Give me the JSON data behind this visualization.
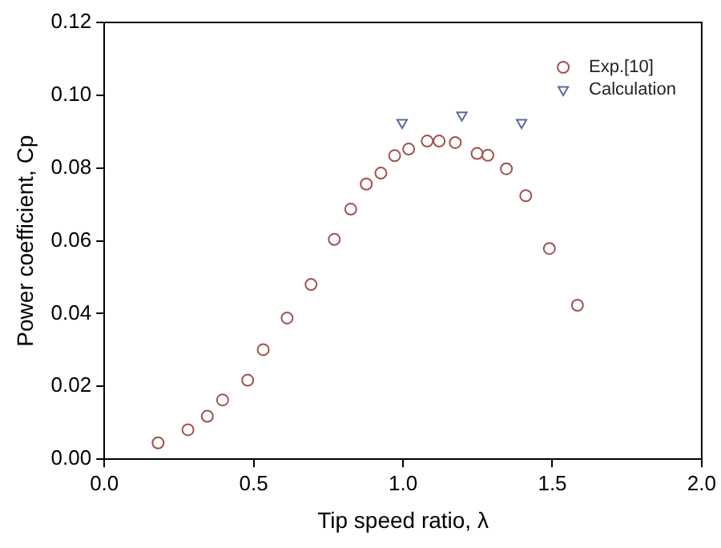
{
  "chart_data": {
    "type": "scatter",
    "xlabel": "Tip speed ratio, λ",
    "ylabel": "Power coefficient, Cp",
    "xlim": [
      0,
      2
    ],
    "xticks": [
      {
        "value": 0,
        "label": "0.0"
      },
      {
        "value": 0.5,
        "label": "0.5"
      },
      {
        "value": 1,
        "label": "1.0"
      },
      {
        "value": 1.5,
        "label": "1.5"
      },
      {
        "value": 2,
        "label": "2.0"
      }
    ],
    "ylim": [
      0,
      0.12
    ],
    "yticks": [
      {
        "value": 0,
        "label": "0.00"
      },
      {
        "value": 0.02,
        "label": "0.02"
      },
      {
        "value": 0.04,
        "label": "0.04"
      },
      {
        "value": 0.06,
        "label": "0.06"
      },
      {
        "value": 0.08,
        "label": "0.08"
      },
      {
        "value": 0.1,
        "label": "0.10"
      },
      {
        "value": 0.12,
        "label": "0.12"
      }
    ],
    "grid": false,
    "legend": "top right",
    "series": [
      {
        "name": "Exp.[10]",
        "color": "#a0524e",
        "marker": "circle",
        "x": [
          0.18,
          0.28,
          0.345,
          0.396,
          0.48,
          0.532,
          0.612,
          0.692,
          0.77,
          0.825,
          0.877,
          0.926,
          0.972,
          1.019,
          1.081,
          1.121,
          1.175,
          1.248,
          1.284,
          1.346,
          1.411,
          1.49,
          1.584
        ],
        "values": [
          0.0045,
          0.0081,
          0.0118,
          0.0163,
          0.0217,
          0.0301,
          0.0388,
          0.048,
          0.0604,
          0.0687,
          0.0756,
          0.0786,
          0.0834,
          0.0852,
          0.0874,
          0.0874,
          0.087,
          0.084,
          0.0835,
          0.0798,
          0.0724,
          0.0579,
          0.0423
        ]
      },
      {
        "name": "Calculation",
        "color": "#5b6a9a",
        "marker": "triangle",
        "x": [
          0.997,
          1.197,
          1.397
        ],
        "values": [
          0.0925,
          0.0945,
          0.0925
        ]
      }
    ]
  }
}
